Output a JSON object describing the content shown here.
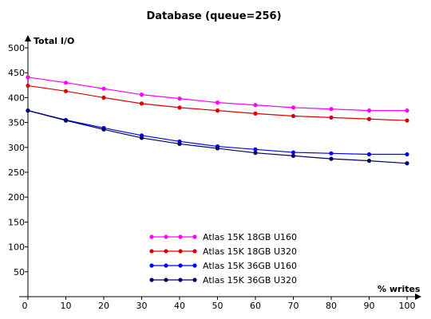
{
  "chart_data": {
    "type": "line",
    "title": "Database (queue=256)",
    "xlabel": "% writes",
    "ylabel": "Total I/O",
    "x": [
      0,
      10,
      20,
      30,
      40,
      50,
      60,
      70,
      80,
      90,
      100
    ],
    "xlim": [
      0,
      100
    ],
    "ylim": [
      0,
      500
    ],
    "yticks": [
      0,
      50,
      100,
      150,
      200,
      250,
      300,
      350,
      400,
      450,
      500
    ],
    "grid": false,
    "legend_position": "bottom-center",
    "series": [
      {
        "name": "Atlas 15K 18GB U160",
        "color": "#ff00ff",
        "values": [
          441,
          430,
          418,
          406,
          398,
          390,
          385,
          380,
          377,
          374,
          374
        ]
      },
      {
        "name": "Atlas 15K 18GB U320",
        "color": "#dd0000",
        "values": [
          424,
          413,
          400,
          388,
          380,
          374,
          368,
          363,
          360,
          357,
          354
        ]
      },
      {
        "name": "Atlas 15K 36GB U160",
        "color": "#0000ff",
        "values": [
          374,
          355,
          339,
          324,
          312,
          302,
          296,
          290,
          288,
          286,
          286
        ]
      },
      {
        "name": "Atlas 15K 36GB U320",
        "color": "#000066",
        "values": [
          374,
          354,
          336,
          319,
          307,
          298,
          289,
          283,
          277,
          273,
          268
        ]
      }
    ]
  }
}
